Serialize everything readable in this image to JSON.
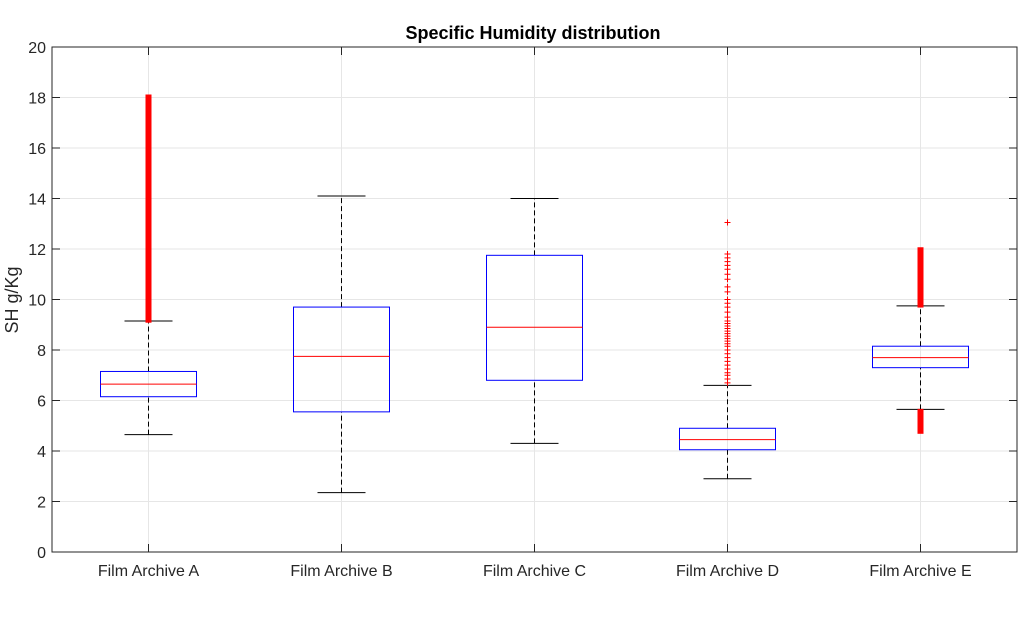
{
  "chart_data": {
    "type": "boxplot",
    "title": "Specific Humidity distribution",
    "xlabel": "",
    "ylabel": "SH g/Kg",
    "ylim": [
      0,
      20
    ],
    "yticks": [
      0,
      2,
      4,
      6,
      8,
      10,
      12,
      14,
      16,
      18,
      20
    ],
    "grid": true,
    "categories": [
      "Film Archive A",
      "Film Archive B",
      "Film Archive C",
      "Film Archive D",
      "Film Archive E"
    ],
    "boxes": [
      {
        "name": "Film Archive A",
        "lower_whisker": 4.65,
        "q1": 6.15,
        "median": 6.65,
        "q3": 7.15,
        "upper_whisker": 9.15,
        "outliers": [],
        "outlier_ranges": [
          [
            9.2,
            18.0
          ]
        ]
      },
      {
        "name": "Film Archive B",
        "lower_whisker": 2.35,
        "q1": 5.55,
        "median": 7.75,
        "q3": 9.7,
        "upper_whisker": 14.1,
        "outliers": [],
        "outlier_ranges": []
      },
      {
        "name": "Film Archive C",
        "lower_whisker": 4.3,
        "q1": 6.8,
        "median": 8.9,
        "q3": 11.75,
        "upper_whisker": 14.0,
        "outliers": [],
        "outlier_ranges": []
      },
      {
        "name": "Film Archive D",
        "lower_whisker": 2.9,
        "q1": 4.05,
        "median": 4.45,
        "q3": 4.9,
        "upper_whisker": 6.6,
        "outliers": [
          6.7,
          6.85,
          7.0,
          7.1,
          7.25,
          7.4,
          7.55,
          7.7,
          7.85,
          8.0,
          8.15,
          8.25,
          8.35,
          8.45,
          8.55,
          8.65,
          8.75,
          8.85,
          8.95,
          9.05,
          9.15,
          9.3,
          9.5,
          9.7,
          9.85,
          10.0,
          10.3,
          10.5,
          10.8,
          11.0,
          11.2,
          11.35,
          11.5,
          11.65,
          11.8,
          13.05
        ],
        "outlier_ranges": []
      },
      {
        "name": "Film Archive E",
        "lower_whisker": 5.65,
        "q1": 7.3,
        "median": 7.7,
        "q3": 8.15,
        "upper_whisker": 9.75,
        "outliers": [],
        "outlier_ranges": [
          [
            4.8,
            5.55
          ],
          [
            9.8,
            11.95
          ]
        ]
      }
    ]
  }
}
